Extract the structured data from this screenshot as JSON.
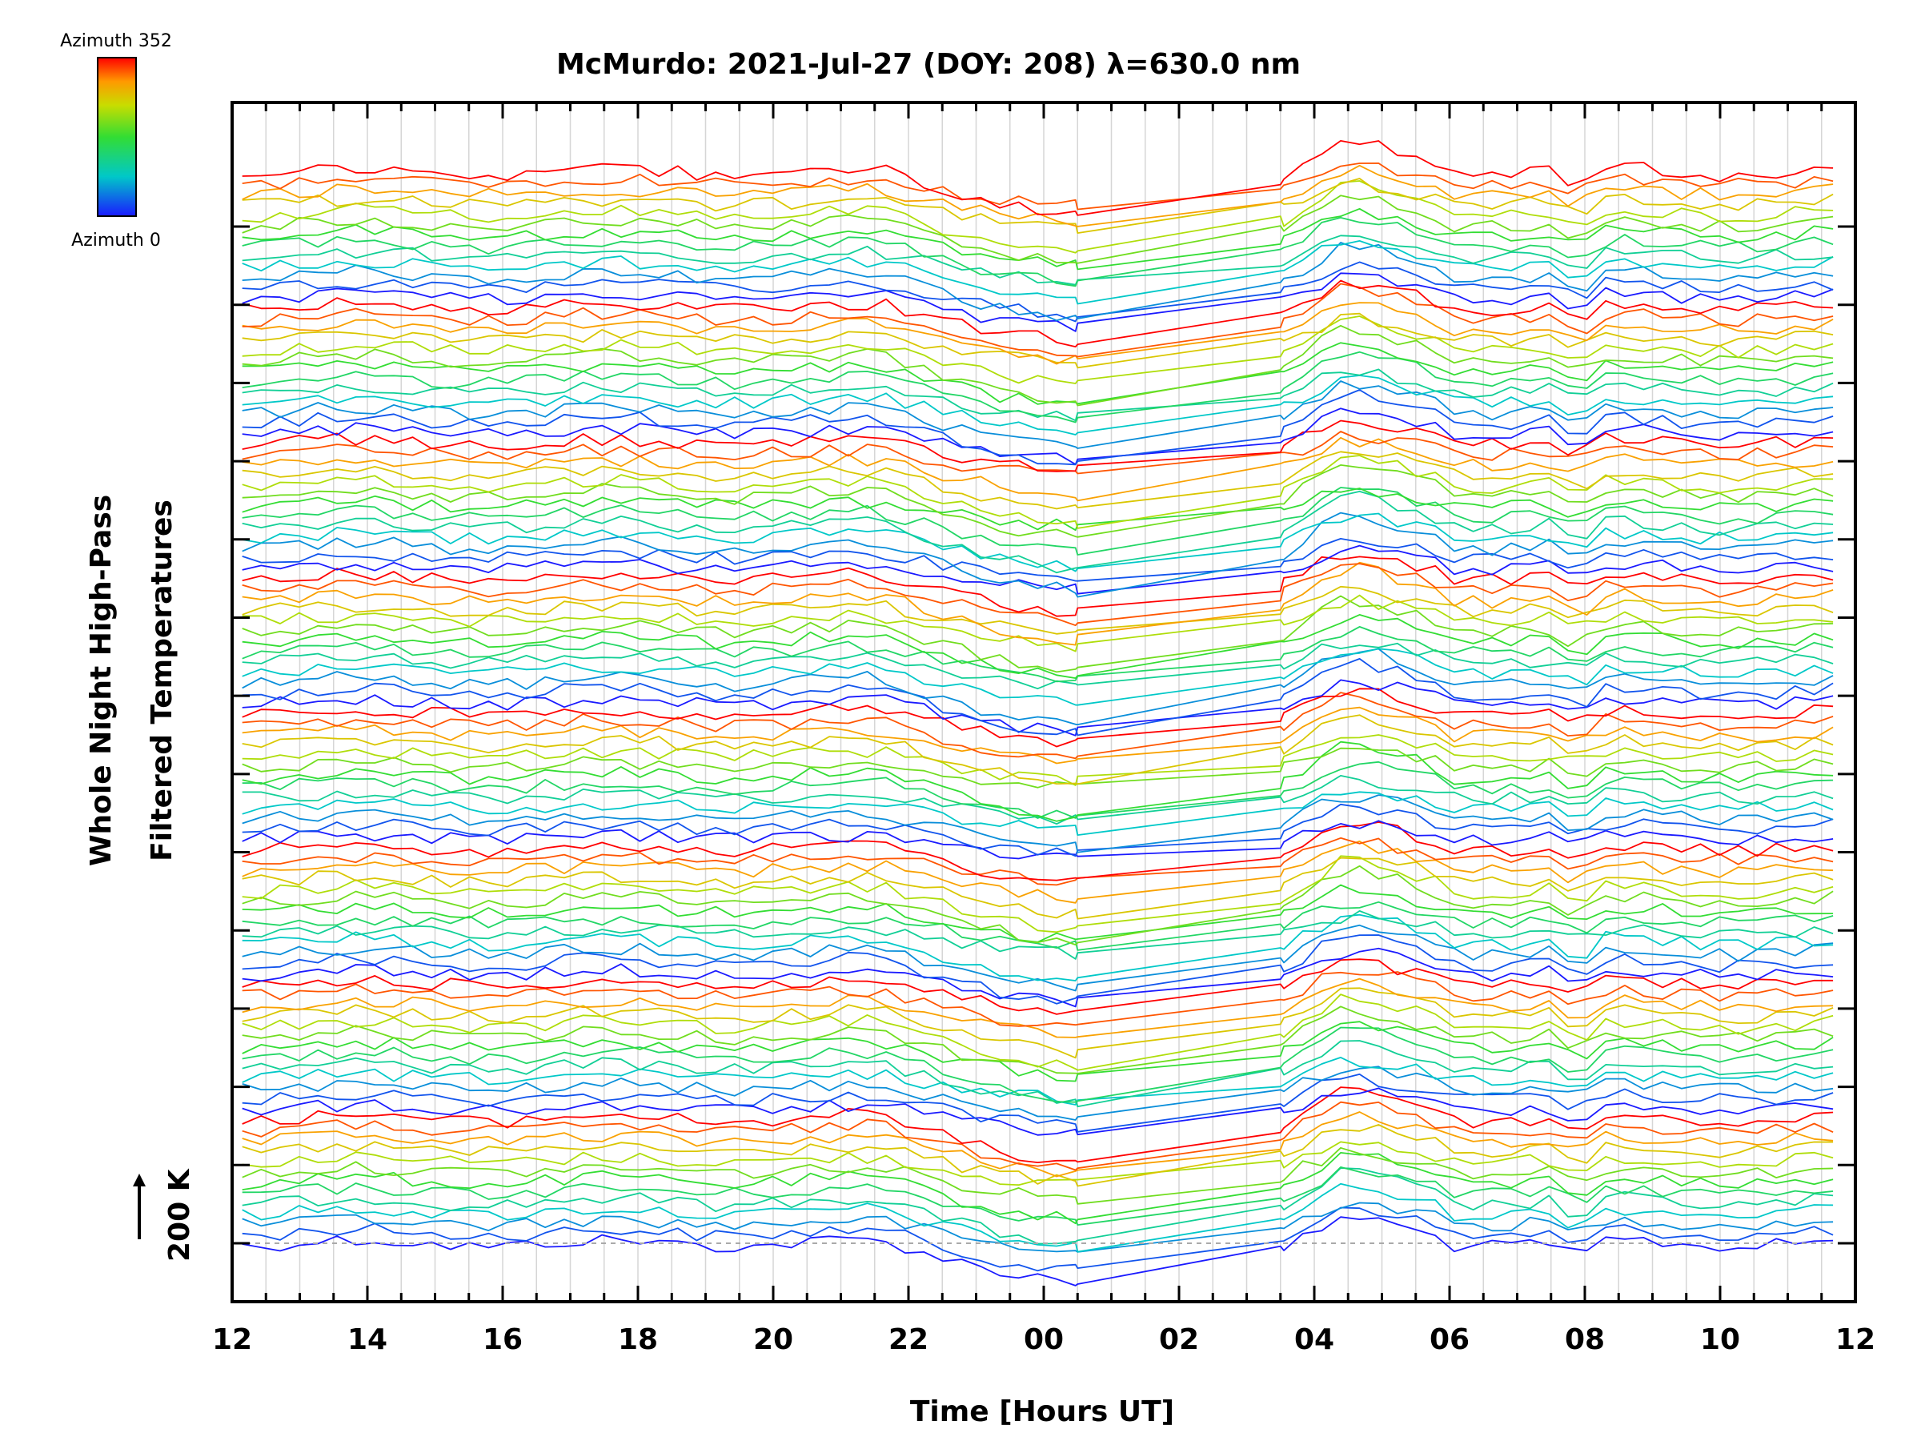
{
  "chart_data": {
    "type": "line",
    "title": "McMurdo: 2021-Jul-27 (DOY: 208) λ=630.0 nm",
    "xlabel": "Time [Hours UT]",
    "ylabel_line1": "Whole Night High-Pass",
    "ylabel_line2": "Filtered Temperatures",
    "scale_label": "200 K",
    "colorbar": {
      "top_label": "Azimuth 352",
      "bottom_label": "Azimuth 0",
      "min": 0,
      "max": 352
    },
    "x_range_hours": [
      12,
      36
    ],
    "x_tick_labels": [
      "12",
      "14",
      "16",
      "18",
      "20",
      "22",
      "00",
      "02",
      "04",
      "06",
      "08",
      "10",
      "12"
    ],
    "data_gap_hours": [
      24.5,
      27.5
    ],
    "y_major_tick_count": 14,
    "series_count": 104,
    "series_offset_units": 1,
    "groups": [
      {
        "name": "group-1",
        "azimuth_range": [
          0,
          352
        ]
      },
      {
        "name": "group-2",
        "azimuth_range": [
          0,
          352
        ]
      },
      {
        "name": "group-3",
        "azimuth_range": [
          0,
          352
        ]
      },
      {
        "name": "group-4",
        "azimuth_range": [
          0,
          352
        ]
      },
      {
        "name": "group-5",
        "azimuth_range": [
          0,
          352
        ]
      },
      {
        "name": "group-6",
        "azimuth_range": [
          0,
          352
        ]
      },
      {
        "name": "group-7",
        "azimuth_range": [
          0,
          352
        ]
      },
      {
        "name": "group-8",
        "azimuth_range": [
          0,
          352
        ]
      }
    ]
  }
}
